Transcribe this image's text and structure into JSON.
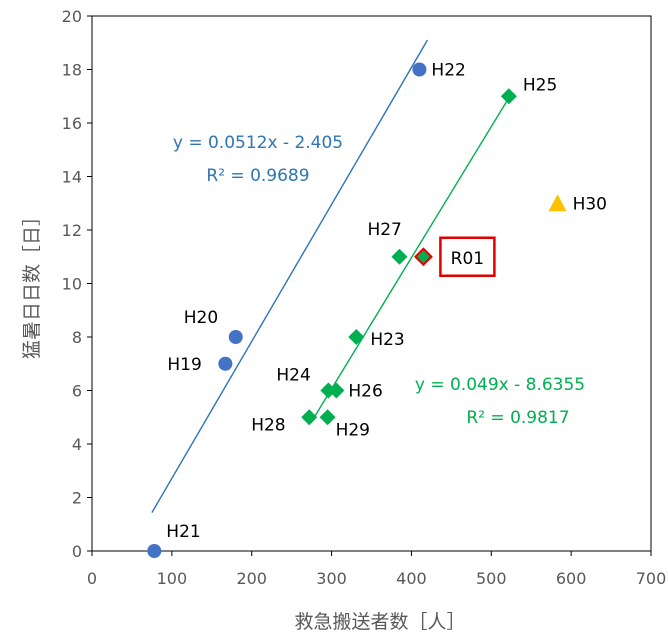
{
  "chart_data": {
    "type": "scatter",
    "xlabel": "救急搬送者数［人］",
    "ylabel": "猛暑日日数［日］",
    "xlim": [
      0,
      700
    ],
    "ylim": [
      0,
      20
    ],
    "xticks": [
      0,
      100,
      200,
      300,
      400,
      500,
      600,
      700
    ],
    "yticks": [
      0,
      2,
      4,
      6,
      8,
      10,
      12,
      14,
      16,
      18,
      20
    ],
    "grid": false,
    "legend": "none",
    "series": [
      {
        "marker": "circle",
        "color": "#4472C4",
        "points": [
          {
            "label": "H19",
            "x": 167,
            "y": 7
          },
          {
            "label": "H20",
            "x": 180,
            "y": 8
          },
          {
            "label": "H21",
            "x": 78,
            "y": 0
          },
          {
            "label": "H22",
            "x": 410,
            "y": 18
          }
        ],
        "trendline": {
          "equation": "y = 0.0512x - 2.405",
          "r2": "R² = 0.9689",
          "slope": 0.0512,
          "intercept": -2.405,
          "x_range": [
            75,
            420
          ],
          "color": "#2E75B6"
        }
      },
      {
        "marker": "diamond",
        "color": "#00B050",
        "points": [
          {
            "label": "H23",
            "x": 331,
            "y": 8
          },
          {
            "label": "H24",
            "x": 296,
            "y": 6
          },
          {
            "label": "H25",
            "x": 522,
            "y": 17
          },
          {
            "label": "H26",
            "x": 306,
            "y": 6
          },
          {
            "label": "H27",
            "x": 385,
            "y": 11
          },
          {
            "label": "H28",
            "x": 272,
            "y": 5
          },
          {
            "label": "H29",
            "x": 295,
            "y": 5
          },
          {
            "label": "R01",
            "x": 415,
            "y": 11
          }
        ],
        "trendline": {
          "equation": "y = 0.049x - 8.6355",
          "r2": "R² = 0.9817",
          "slope": 0.049,
          "intercept": -8.6355,
          "x_range": [
            274,
            525
          ],
          "color": "#00B050"
        }
      },
      {
        "marker": "triangle",
        "color": "#FFC000",
        "points": [
          {
            "label": "H30",
            "x": 583,
            "y": 13
          }
        ]
      }
    ],
    "highlight": {
      "label": "R01",
      "color": "#E00000"
    }
  }
}
